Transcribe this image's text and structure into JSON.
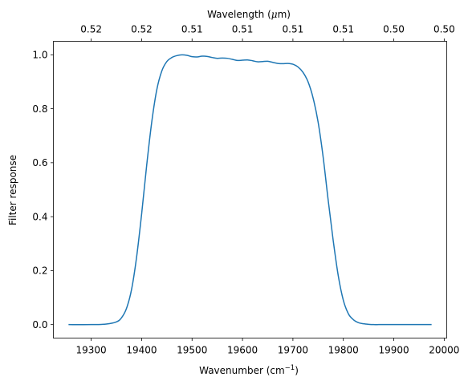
{
  "chart_data": {
    "type": "line",
    "xlabel": "Wavenumber (cm",
    "xlabel_sup": "−1",
    "xlabel_end": ")",
    "ylabel": "Filter response",
    "top_xlabel": "Wavelength (",
    "top_xlabel_mu": "μ",
    "top_xlabel_end": "m)",
    "xlim": [
      19225,
      20005
    ],
    "ylim": [
      -0.05,
      1.05
    ],
    "x_ticks": [
      19300,
      19400,
      19500,
      19600,
      19700,
      19800,
      19900,
      20000
    ],
    "y_ticks": [
      0.0,
      0.2,
      0.4,
      0.6,
      0.8,
      1.0
    ],
    "top_ticks": [
      {
        "wavenumber": 19300,
        "label": "0.52"
      },
      {
        "wavenumber": 19400,
        "label": "0.52"
      },
      {
        "wavenumber": 19500,
        "label": "0.51"
      },
      {
        "wavenumber": 19600,
        "label": "0.51"
      },
      {
        "wavenumber": 19700,
        "label": "0.51"
      },
      {
        "wavenumber": 19800,
        "label": "0.51"
      },
      {
        "wavenumber": 19900,
        "label": "0.50"
      },
      {
        "wavenumber": 20000,
        "label": "0.50"
      }
    ],
    "grid": false,
    "line_color": "#1f77b4",
    "series": [
      {
        "x": [
          19255,
          19300,
          19330,
          19350,
          19360,
          19370,
          19380,
          19390,
          19400,
          19410,
          19420,
          19430,
          19440,
          19450,
          19460,
          19470,
          19480,
          19490,
          19500,
          19510,
          19520,
          19530,
          19540,
          19550,
          19560,
          19570,
          19580,
          19590,
          19600,
          19610,
          19620,
          19630,
          19640,
          19650,
          19660,
          19670,
          19680,
          19690,
          19700,
          19710,
          19720,
          19730,
          19740,
          19750,
          19760,
          19770,
          19780,
          19790,
          19800,
          19810,
          19820,
          19830,
          19840,
          19850,
          19860,
          19870,
          19880,
          19900,
          19950,
          19975
        ],
        "y": [
          0.0,
          0.0,
          0.002,
          0.01,
          0.025,
          0.06,
          0.13,
          0.25,
          0.41,
          0.59,
          0.75,
          0.87,
          0.94,
          0.975,
          0.99,
          0.997,
          1.0,
          0.998,
          0.993,
          0.992,
          0.995,
          0.994,
          0.99,
          0.987,
          0.988,
          0.987,
          0.983,
          0.979,
          0.98,
          0.981,
          0.978,
          0.974,
          0.975,
          0.976,
          0.972,
          0.968,
          0.967,
          0.968,
          0.965,
          0.955,
          0.935,
          0.9,
          0.84,
          0.75,
          0.62,
          0.46,
          0.31,
          0.18,
          0.09,
          0.04,
          0.018,
          0.007,
          0.003,
          0.001,
          0.0,
          0.0,
          0.0,
          0.0,
          0.0,
          0.0
        ]
      }
    ]
  }
}
